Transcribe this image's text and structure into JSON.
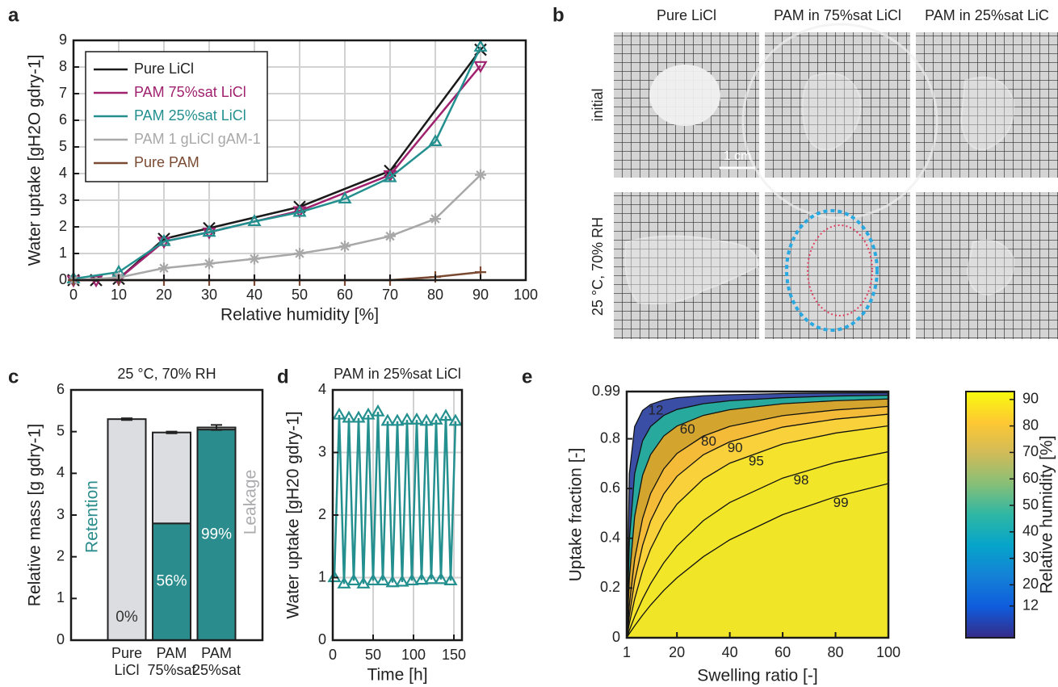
{
  "panel_labels": [
    "a",
    "b",
    "c",
    "d",
    "e"
  ],
  "photos": {
    "columns": [
      "Pure LiCl",
      "PAM in 75%sat LiCl",
      "PAM in 25%sat LiC"
    ],
    "rows": [
      "initial",
      "25 °C, 70% RH"
    ],
    "scale_bar": "1 cm"
  },
  "chart_data": [
    {
      "type": "line",
      "xlabel": "Relative humidity [%]",
      "ylabel": "Water uptake [gH2O gdry-1]",
      "xlim": [
        0,
        100
      ],
      "xticks": [
        0,
        10,
        20,
        30,
        40,
        50,
        60,
        70,
        80,
        90,
        100
      ],
      "ylim": [
        0,
        9
      ],
      "yticks": [
        0,
        1,
        2,
        3,
        4,
        5,
        6,
        7,
        8,
        9
      ],
      "grid": true,
      "legend": "upper left",
      "series": [
        {
          "name": "Pure LiCl",
          "color": "#1a1a1a",
          "marker": "x",
          "x": [
            0,
            5,
            10,
            20,
            30,
            50,
            70,
            90
          ],
          "values": [
            0,
            0,
            0.05,
            1.55,
            1.95,
            2.75,
            4.1,
            8.65
          ]
        },
        {
          "name": "PAM 75%sat LiCl",
          "color": "#a0216e",
          "marker": "triangle-down",
          "x": [
            0,
            5,
            10,
            20,
            30,
            50,
            70,
            90
          ],
          "values": [
            0,
            0,
            0.05,
            1.45,
            1.8,
            2.6,
            3.95,
            8.05
          ]
        },
        {
          "name": "PAM 25%sat LiCl",
          "color": "#23908f",
          "marker": "triangle-up",
          "x": [
            0,
            10,
            20,
            30,
            40,
            50,
            60,
            70,
            80,
            90
          ],
          "values": [
            0.05,
            0.3,
            1.45,
            1.8,
            2.2,
            2.55,
            3.05,
            3.85,
            5.2,
            8.75
          ]
        },
        {
          "name": "PAM 1 gLiCl gAM-1",
          "color": "#a8a8a8",
          "marker": "star",
          "x": [
            0,
            10,
            20,
            30,
            40,
            50,
            60,
            70,
            80,
            90
          ],
          "values": [
            0,
            0.1,
            0.45,
            0.62,
            0.8,
            1.0,
            1.27,
            1.65,
            2.3,
            3.95
          ]
        },
        {
          "name": "Pure PAM",
          "color": "#7a4a32",
          "marker": "plus",
          "x": [
            0,
            10,
            20,
            30,
            40,
            50,
            60,
            70,
            80,
            90
          ],
          "values": [
            0,
            0,
            0,
            0,
            0,
            0,
            0,
            0,
            0.12,
            0.3
          ]
        }
      ]
    },
    {
      "type": "stacked-bar",
      "title": "25 °C, 70% RH",
      "ylabel": "Relative mass [g gdry-1]",
      "categories": [
        "Pure LiCl",
        "PAM 75%sat",
        "PAM 25%sat"
      ],
      "ylim": [
        0,
        6
      ],
      "yticks": [
        0,
        1,
        2,
        3,
        4,
        5,
        6
      ],
      "series": [
        {
          "name": "Retention",
          "color": "#2a8c8c",
          "values": [
            0,
            2.8,
            5.05
          ]
        },
        {
          "name": "Leakage",
          "color": "#dcdde0",
          "values": [
            5.3,
            2.18,
            0.05
          ]
        }
      ],
      "errors": [
        0.02,
        0.02,
        0.06
      ],
      "annotations": [
        "0%",
        "56%",
        "99%"
      ]
    },
    {
      "type": "line",
      "title": "PAM in 25%sat LiCl",
      "xlabel": "Time [h]",
      "ylabel": "Water uptake [gH20 gdry-1]",
      "xlim": [
        0,
        160
      ],
      "xticks": [
        0,
        50,
        100,
        150
      ],
      "ylim": [
        0,
        4
      ],
      "yticks": [
        0,
        1,
        2,
        3,
        4
      ],
      "grid": true,
      "series": [
        {
          "color": "#23908f",
          "marker": "triangle-up",
          "x": [
            2,
            8,
            14,
            20,
            26,
            32,
            38,
            44,
            50,
            56,
            62,
            68,
            74,
            80,
            86,
            92,
            98,
            104,
            110,
            116,
            122,
            128,
            134,
            140,
            146,
            152
          ],
          "values": [
            1.0,
            3.6,
            0.9,
            3.55,
            0.95,
            3.55,
            0.9,
            3.6,
            0.95,
            3.65,
            0.95,
            3.5,
            0.92,
            3.5,
            0.93,
            3.52,
            0.95,
            3.52,
            0.96,
            3.5,
            0.97,
            3.52,
            0.97,
            3.58,
            0.95,
            3.5
          ]
        }
      ]
    },
    {
      "type": "contour",
      "xlabel": "Swelling ratio [-]",
      "ylabel": "Uptake fraction [-]",
      "xlim": [
        1,
        100
      ],
      "xticks": [
        1,
        20,
        40,
        60,
        80,
        100
      ],
      "ylim": [
        0,
        0.99
      ],
      "yticks": [
        0,
        0.2,
        0.4,
        0.6,
        0.8,
        0.99
      ],
      "x": [
        1,
        2,
        4,
        7,
        10,
        15,
        20,
        30,
        40,
        60,
        80,
        100
      ],
      "contours": [
        {
          "label": 12,
          "color": "#3b4ea5",
          "values": [
            0,
            0.66,
            0.849,
            0.914,
            0.938,
            0.956,
            0.965,
            0.973,
            0.977,
            0.982,
            0.984,
            0.985
          ]
        },
        {
          "label": null,
          "color": "#27aa9d",
          "values": [
            0,
            0.396,
            0.66,
            0.792,
            0.849,
            0.894,
            0.918,
            0.941,
            0.953,
            0.965,
            0.972,
            0.975
          ]
        },
        {
          "label": 60,
          "color": "#d3a52e",
          "values": [
            0,
            0.241,
            0.487,
            0.653,
            0.736,
            0.811,
            0.851,
            0.894,
            0.917,
            0.941,
            0.953,
            0.96
          ]
        },
        {
          "label": 80,
          "color": "#f4bb39",
          "values": [
            0,
            0.134,
            0.316,
            0.479,
            0.579,
            0.679,
            0.741,
            0.811,
            0.85,
            0.893,
            0.916,
            0.93
          ]
        },
        {
          "label": 90,
          "color": "#f8d13b",
          "values": [
            0,
            0.09,
            0.228,
            0.371,
            0.469,
            0.578,
            0.649,
            0.736,
            0.788,
            0.847,
            0.879,
            0.899
          ]
        },
        {
          "label": 95,
          "color": "#f4e22c",
          "values": [
            0,
            0.058,
            0.156,
            0.27,
            0.356,
            0.462,
            0.537,
            0.638,
            0.702,
            0.779,
            0.823,
            0.852
          ]
        },
        {
          "label": 98,
          "color": "#f1e628",
          "values": [
            0,
            0.03,
            0.085,
            0.156,
            0.217,
            0.301,
            0.369,
            0.471,
            0.544,
            0.642,
            0.705,
            0.748
          ]
        },
        {
          "label": 99,
          "color": "#f0e627",
          "values": [
            0,
            0.017,
            0.048,
            0.091,
            0.131,
            0.19,
            0.241,
            0.326,
            0.394,
            0.495,
            0.567,
            0.62
          ]
        }
      ],
      "colorbar": {
        "label": "Relative humidity [%]",
        "lim": [
          0,
          93
        ],
        "ticks": [
          12,
          20,
          30,
          40,
          50,
          60,
          70,
          80,
          90
        ],
        "colormap": [
          "#352a87",
          "#0f5cdd",
          "#1481d6",
          "#06a4ca",
          "#2eb7a4",
          "#87bf77",
          "#d1bb59",
          "#fec832",
          "#f9fb0e"
        ]
      }
    }
  ]
}
